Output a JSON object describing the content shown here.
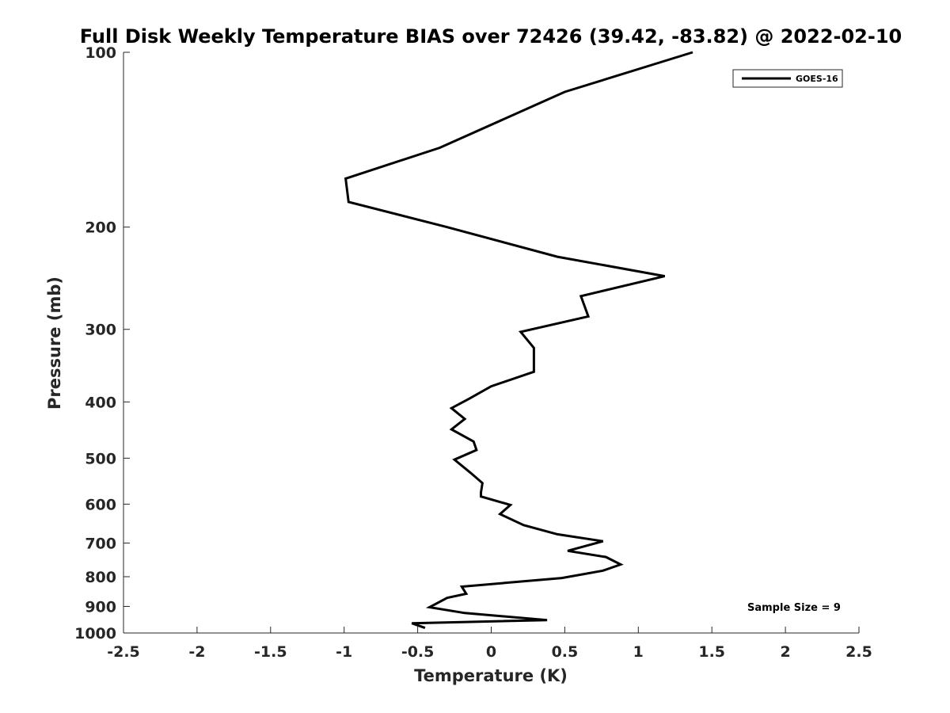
{
  "chart_data": {
    "type": "line",
    "title": "Full Disk Weekly Temperature BIAS over 72426 (39.42, -83.82) @ 2022-02-10",
    "xlabel": "Temperature (K)",
    "ylabel": "Pressure (mb)",
    "xlim": [
      -2.5,
      2.5
    ],
    "ylim": [
      100,
      1000
    ],
    "y_scale": "log",
    "y_reversed": true,
    "x_ticks": [
      "-2.5",
      "-2",
      "-1.5",
      "-1",
      "-0.5",
      "0",
      "0.5",
      "1",
      "1.5",
      "2",
      "2.5"
    ],
    "x_tick_values": [
      -2.5,
      -2,
      -1.5,
      -1,
      -0.5,
      0,
      0.5,
      1,
      1.5,
      2,
      2.5
    ],
    "y_ticks": [
      "100",
      "200",
      "300",
      "400",
      "500",
      "600",
      "700",
      "800",
      "900",
      "1000"
    ],
    "y_tick_values": [
      100,
      200,
      300,
      400,
      500,
      600,
      700,
      800,
      900,
      1000
    ],
    "grid": false,
    "legend_position": "top-right",
    "annotation": "Sample Size = 9",
    "series": [
      {
        "name": "GOES-16",
        "color": "#000000",
        "points": [
          [
            1.37,
            100
          ],
          [
            0.5,
            117
          ],
          [
            -0.35,
            146
          ],
          [
            -0.99,
            165
          ],
          [
            -0.97,
            181
          ],
          [
            -0.3,
            200
          ],
          [
            0.45,
            225
          ],
          [
            1.18,
            243
          ],
          [
            0.61,
            263
          ],
          [
            0.66,
            285
          ],
          [
            0.2,
            303
          ],
          [
            0.29,
            323
          ],
          [
            0.29,
            355
          ],
          [
            0.0,
            376
          ],
          [
            -0.15,
            395
          ],
          [
            -0.27,
            410
          ],
          [
            -0.18,
            428
          ],
          [
            -0.27,
            446
          ],
          [
            -0.12,
            468
          ],
          [
            -0.1,
            484
          ],
          [
            -0.25,
            503
          ],
          [
            -0.14,
            530
          ],
          [
            -0.06,
            552
          ],
          [
            -0.07,
            573
          ],
          [
            -0.07,
            582
          ],
          [
            0.13,
            602
          ],
          [
            0.06,
            624
          ],
          [
            0.22,
            652
          ],
          [
            0.45,
            676
          ],
          [
            0.76,
            695
          ],
          [
            0.52,
            722
          ],
          [
            0.78,
            740
          ],
          [
            0.88,
            762
          ],
          [
            0.76,
            781
          ],
          [
            0.48,
            804
          ],
          [
            -0.2,
            832
          ],
          [
            -0.17,
            856
          ],
          [
            -0.3,
            870
          ],
          [
            -0.42,
            903
          ],
          [
            -0.18,
            924
          ],
          [
            0.38,
            950
          ],
          [
            -0.54,
            962
          ],
          [
            -0.45,
            980
          ]
        ]
      }
    ]
  }
}
